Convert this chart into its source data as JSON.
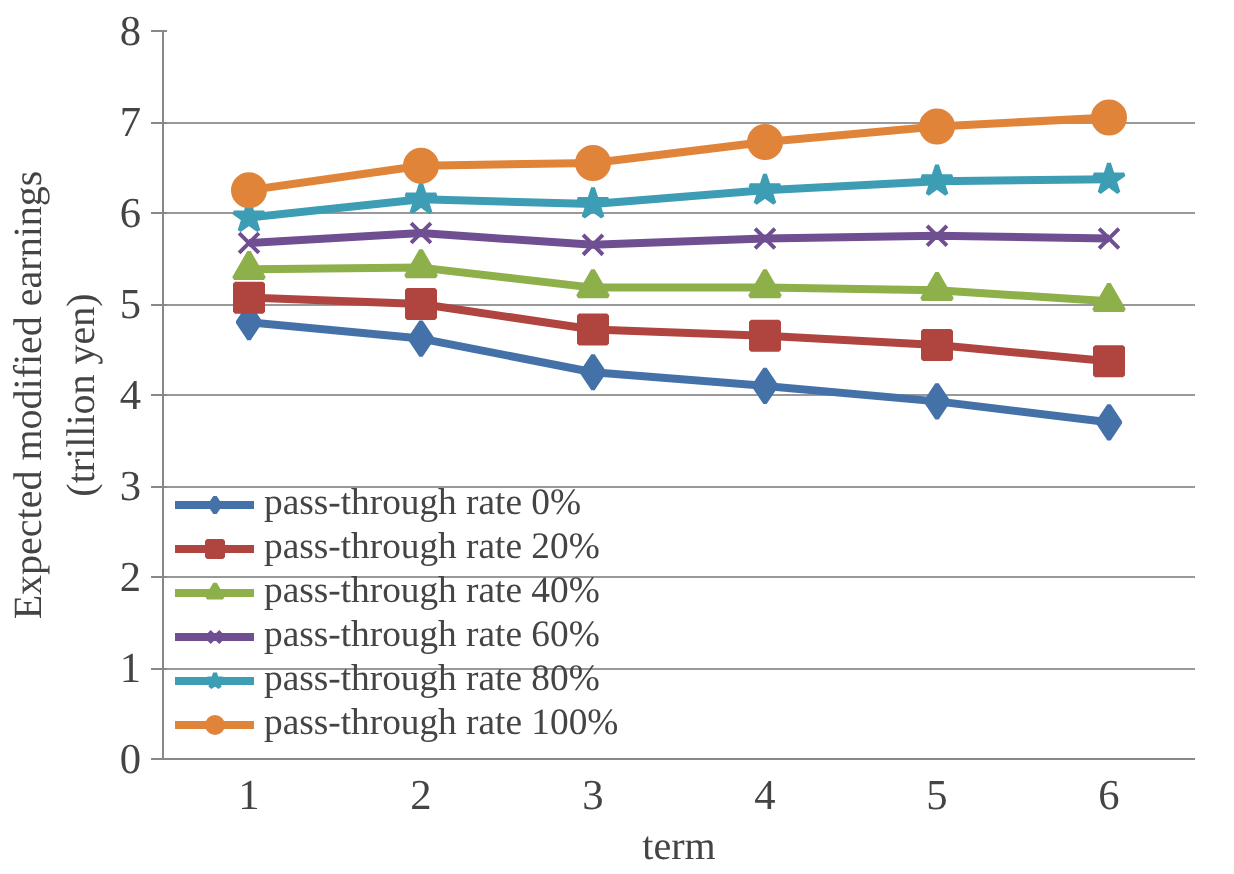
{
  "chart_data": {
    "type": "line",
    "xlabel": "term",
    "ylabel": "Expected modified earnings\n(trillion yen)",
    "categories": [
      "1",
      "2",
      "3",
      "4",
      "5",
      "6"
    ],
    "ylim": [
      0,
      8
    ],
    "yticks": [
      0,
      1,
      2,
      3,
      4,
      5,
      6,
      7,
      8
    ],
    "grid": "y",
    "legend": "bottom left",
    "line_style": "solid",
    "series": [
      {
        "name": "pass-through rate 0%",
        "color": "#4472a8",
        "marker": "diamond",
        "values": [
          4.8,
          4.62,
          4.25,
          4.1,
          3.93,
          3.7
        ]
      },
      {
        "name": "pass-through rate 20%",
        "color": "#b0443f",
        "marker": "square",
        "values": [
          5.07,
          5.0,
          4.72,
          4.65,
          4.55,
          4.37
        ]
      },
      {
        "name": "pass-through rate 40%",
        "color": "#8db04a",
        "marker": "triangle",
        "values": [
          5.38,
          5.4,
          5.18,
          5.18,
          5.15,
          5.03
        ]
      },
      {
        "name": "pass-through rate 60%",
        "color": "#6f4f92",
        "marker": "cross",
        "values": [
          5.67,
          5.78,
          5.65,
          5.72,
          5.75,
          5.72
        ]
      },
      {
        "name": "pass-through rate 80%",
        "color": "#3d9db4",
        "marker": "star",
        "values": [
          5.95,
          6.15,
          6.1,
          6.25,
          6.35,
          6.37
        ]
      },
      {
        "name": "pass-through rate 100%",
        "color": "#e0843a",
        "marker": "circle",
        "values": [
          6.25,
          6.52,
          6.55,
          6.78,
          6.95,
          7.05
        ]
      }
    ]
  }
}
